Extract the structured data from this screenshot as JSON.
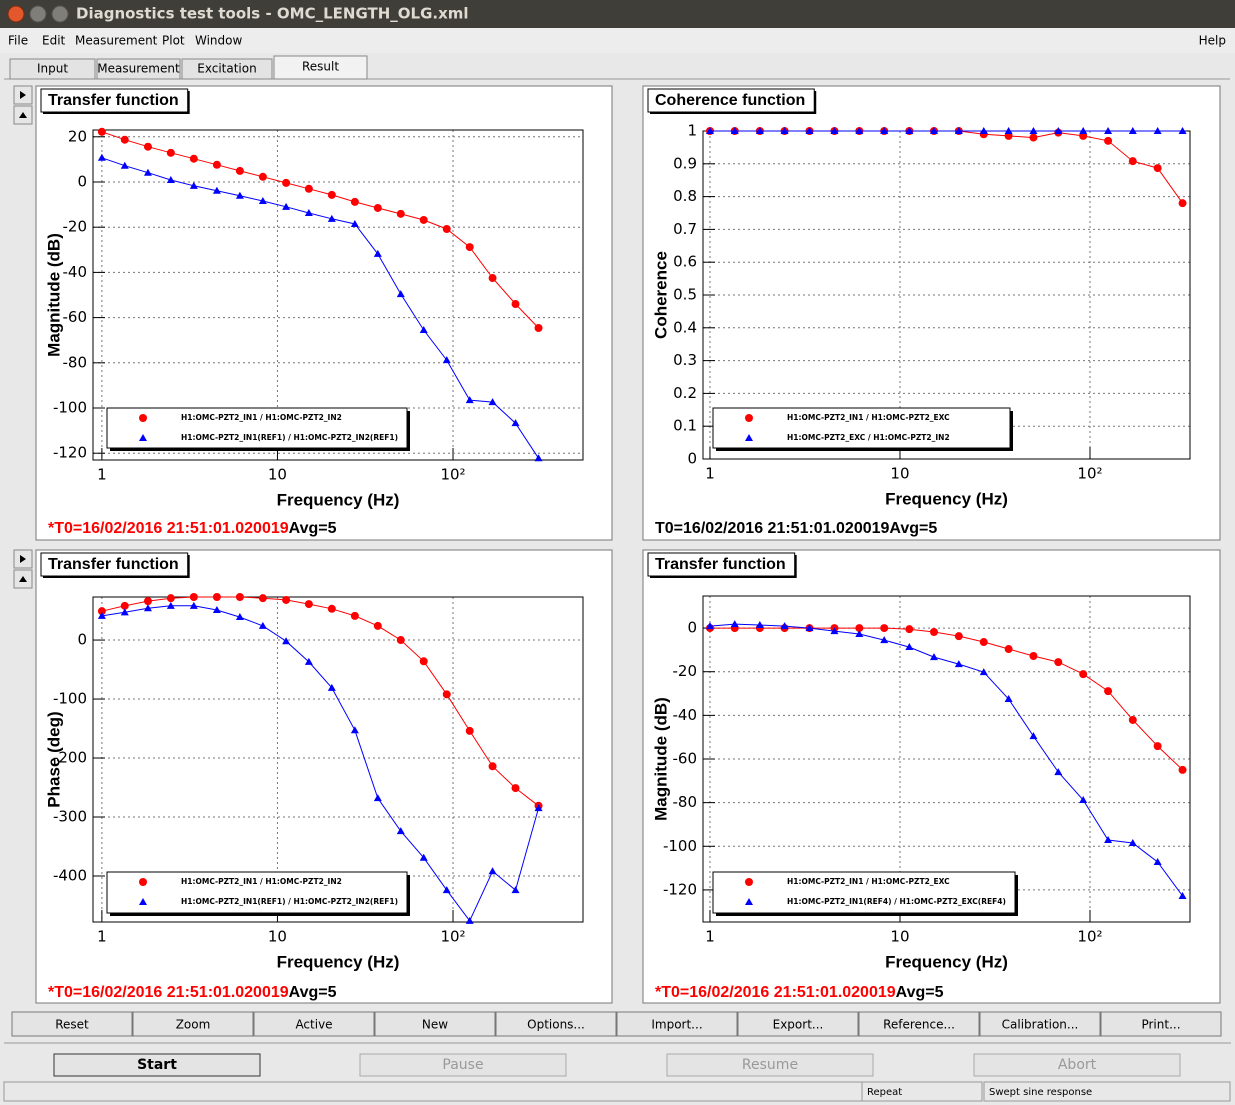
{
  "window": {
    "title": "Diagnostics test tools - OMC_LENGTH_OLG.xml"
  },
  "menu": [
    "File",
    "Edit",
    "Measurement",
    "Plot",
    "Window"
  ],
  "help": "Help",
  "tabs": [
    "Input",
    "Measurement",
    "Excitation",
    "Result"
  ],
  "active_tab": 3,
  "chart_data": [
    {
      "type": "line",
      "title": "Transfer function",
      "x_label": "Frequency (Hz)",
      "y_label": "Magnitude (dB)",
      "x": [
        1,
        1.35,
        1.83,
        2.47,
        3.34,
        4.52,
        6.11,
        8.26,
        11.2,
        15.1,
        20.4,
        27.6,
        37.3,
        50.4,
        68.1,
        92.1,
        124.5,
        168,
        227,
        307
      ],
      "xscale": "log",
      "xlim": [
        0.89,
        550
      ],
      "xticks": [
        1,
        10,
        {
          "value": 100,
          "label": "10²"
        }
      ],
      "ylim": [
        -123,
        23
      ],
      "yticks": [
        20,
        0,
        -20,
        -40,
        -60,
        -80,
        -100,
        -120
      ],
      "grid": true,
      "series": [
        {
          "name": "H1:OMC-PZT2_IN1 / H1:OMC-PZT2_IN2",
          "color": "#ff0000",
          "marker": "circle",
          "values": [
            22.2,
            18.7,
            15.6,
            12.9,
            10.3,
            7.6,
            4.9,
            2.3,
            -0.4,
            -3.0,
            -5.7,
            -8.8,
            -11.5,
            -14.1,
            -16.8,
            -20.8,
            -28.8,
            -42.5,
            -54.0,
            -64.6
          ]
        },
        {
          "name": "H1:OMC-PZT2_IN1(REF1) / H1:OMC-PZT2_IN2(REF1)",
          "color": "#0000ff",
          "marker": "triangle",
          "values": [
            10.7,
            7.2,
            4.1,
            0.9,
            -1.7,
            -3.9,
            -6.1,
            -8.4,
            -11.0,
            -13.7,
            -16.3,
            -18.6,
            -31.8,
            -49.6,
            -65.5,
            -78.8,
            -96.5,
            -97.4,
            -106.7,
            -122.2
          ]
        }
      ],
      "t0": "*T0=16/02/2016 21:51:01.020019",
      "t0_color": "#ff0000",
      "avg": "Avg=5"
    },
    {
      "type": "line",
      "title": "Coherence function",
      "x_label": "Frequency (Hz)",
      "y_label": "Coherence",
      "x": [
        1,
        1.35,
        1.83,
        2.47,
        3.34,
        4.52,
        6.11,
        8.26,
        11.2,
        15.1,
        20.4,
        27.6,
        37.3,
        50.4,
        68.1,
        92.1,
        124.5,
        168,
        227,
        307
      ],
      "xscale": "log",
      "xlim": [
        0.919,
        336
      ],
      "xticks": [
        1,
        10,
        {
          "value": 100,
          "label": "10²"
        }
      ],
      "ylim": [
        0,
        1
      ],
      "yticks": [
        0,
        0.1,
        0.2,
        0.3,
        0.4,
        0.5,
        0.6,
        0.7,
        0.8,
        0.9,
        1
      ],
      "grid": true,
      "series": [
        {
          "name": "H1:OMC-PZT2_IN1 / H1:OMC-PZT2_EXC",
          "color": "#ff0000",
          "marker": "circle",
          "values": [
            1,
            1,
            1,
            1,
            1,
            1,
            1,
            1,
            1,
            1,
            1,
            0.99,
            0.985,
            0.98,
            0.995,
            0.985,
            0.97,
            0.908,
            0.887,
            0.78
          ]
        },
        {
          "name": "H1:OMC-PZT2_EXC / H1:OMC-PZT2_IN2",
          "color": "#0000ff",
          "marker": "triangle",
          "values": [
            1,
            1,
            1,
            1,
            1,
            1,
            1,
            1,
            1,
            1,
            1,
            1,
            1,
            1,
            1,
            1,
            1,
            1,
            1,
            1
          ]
        }
      ],
      "t0": "T0=16/02/2016 21:51:01.020019",
      "t0_color": "#000000",
      "avg": "Avg=5"
    },
    {
      "type": "line",
      "title": "Transfer function",
      "x_label": "Frequency (Hz)",
      "y_label": "Phase (deg)",
      "x": [
        1,
        1.35,
        1.83,
        2.47,
        3.34,
        4.52,
        6.11,
        8.26,
        11.2,
        15.1,
        20.4,
        27.6,
        37.3,
        50.4,
        68.1,
        92.1,
        124.5,
        168,
        227,
        307
      ],
      "xscale": "log",
      "xlim": [
        0.89,
        550
      ],
      "xticks": [
        1,
        10,
        {
          "value": 100,
          "label": "10²"
        }
      ],
      "ylim": [
        -478,
        73
      ],
      "yticks": [
        0,
        -100,
        -200,
        -300,
        -400
      ],
      "grid": true,
      "series": [
        {
          "name": "H1:OMC-PZT2_IN1 / H1:OMC-PZT2_IN2",
          "color": "#ff0000",
          "marker": "circle",
          "values": [
            49,
            58,
            66,
            71,
            73,
            73,
            73,
            71,
            68,
            61,
            53,
            41,
            24,
            0,
            -36,
            -92,
            -154,
            -214,
            -251,
            -281
          ]
        },
        {
          "name": "H1:OMC-PZT2_IN1(REF1) / H1:OMC-PZT2_IN2(REF1)",
          "color": "#0000ff",
          "marker": "triangle",
          "values": [
            41,
            47,
            54,
            58,
            58,
            51,
            39,
            24,
            -2,
            -37,
            -81,
            -153,
            -268,
            -324,
            -369,
            -424,
            -476,
            -392,
            -424,
            -285
          ]
        }
      ],
      "t0": "*T0=16/02/2016 21:51:01.020019",
      "t0_color": "#ff0000",
      "avg": "Avg=5"
    },
    {
      "type": "line",
      "title": "Transfer function",
      "x_label": "Frequency (Hz)",
      "y_label": "Magnitude (dB)",
      "x": [
        1,
        1.35,
        1.83,
        2.47,
        3.34,
        4.52,
        6.11,
        8.26,
        11.2,
        15.1,
        20.4,
        27.6,
        37.3,
        50.4,
        68.1,
        92.1,
        124.5,
        168,
        227,
        307
      ],
      "xscale": "log",
      "xlim": [
        0.919,
        336
      ],
      "xticks": [
        1,
        10,
        {
          "value": 100,
          "label": "10²"
        }
      ],
      "ylim": [
        -134.7,
        14.7
      ],
      "yticks": [
        0,
        -20,
        -40,
        -60,
        -80,
        -100,
        -120
      ],
      "grid": true,
      "series": [
        {
          "name": "H1:OMC-PZT2_IN1 / H1:OMC-PZT2_EXC",
          "color": "#ff0000",
          "marker": "circle",
          "values": [
            0,
            0,
            0,
            0,
            0,
            0,
            0,
            0,
            -0.5,
            -1.8,
            -3.7,
            -6.4,
            -9.6,
            -12.8,
            -15.6,
            -21.1,
            -28.9,
            -42.1,
            -54.1,
            -65.0
          ]
        },
        {
          "name": "H1:OMC-PZT2_IN1(REF4) / H1:OMC-PZT2_EXC(REF4)",
          "color": "#0000ff",
          "marker": "triangle",
          "values": [
            0.9,
            1.8,
            1.4,
            0.9,
            0,
            -1.4,
            -2.7,
            -5.5,
            -8.7,
            -13.3,
            -16.5,
            -20.2,
            -32.5,
            -49.5,
            -66.0,
            -78.8,
            -97.1,
            -98.5,
            -107.2,
            -122.8
          ]
        }
      ],
      "t0": "*T0=16/02/2016 21:51:01.020019",
      "t0_color": "#ff0000",
      "avg": "Avg=5"
    }
  ],
  "plot_buttons": [
    "Reset",
    "Zoom",
    "Active",
    "New",
    "Options...",
    "Import...",
    "Export...",
    "Reference...",
    "Calibration...",
    "Print..."
  ],
  "run_buttons": [
    {
      "label": "Start",
      "enabled": true
    },
    {
      "label": "Pause",
      "enabled": false
    },
    {
      "label": "Resume",
      "enabled": false
    },
    {
      "label": "Abort",
      "enabled": false
    }
  ],
  "status": [
    "Repeat",
    "Swept sine response"
  ]
}
